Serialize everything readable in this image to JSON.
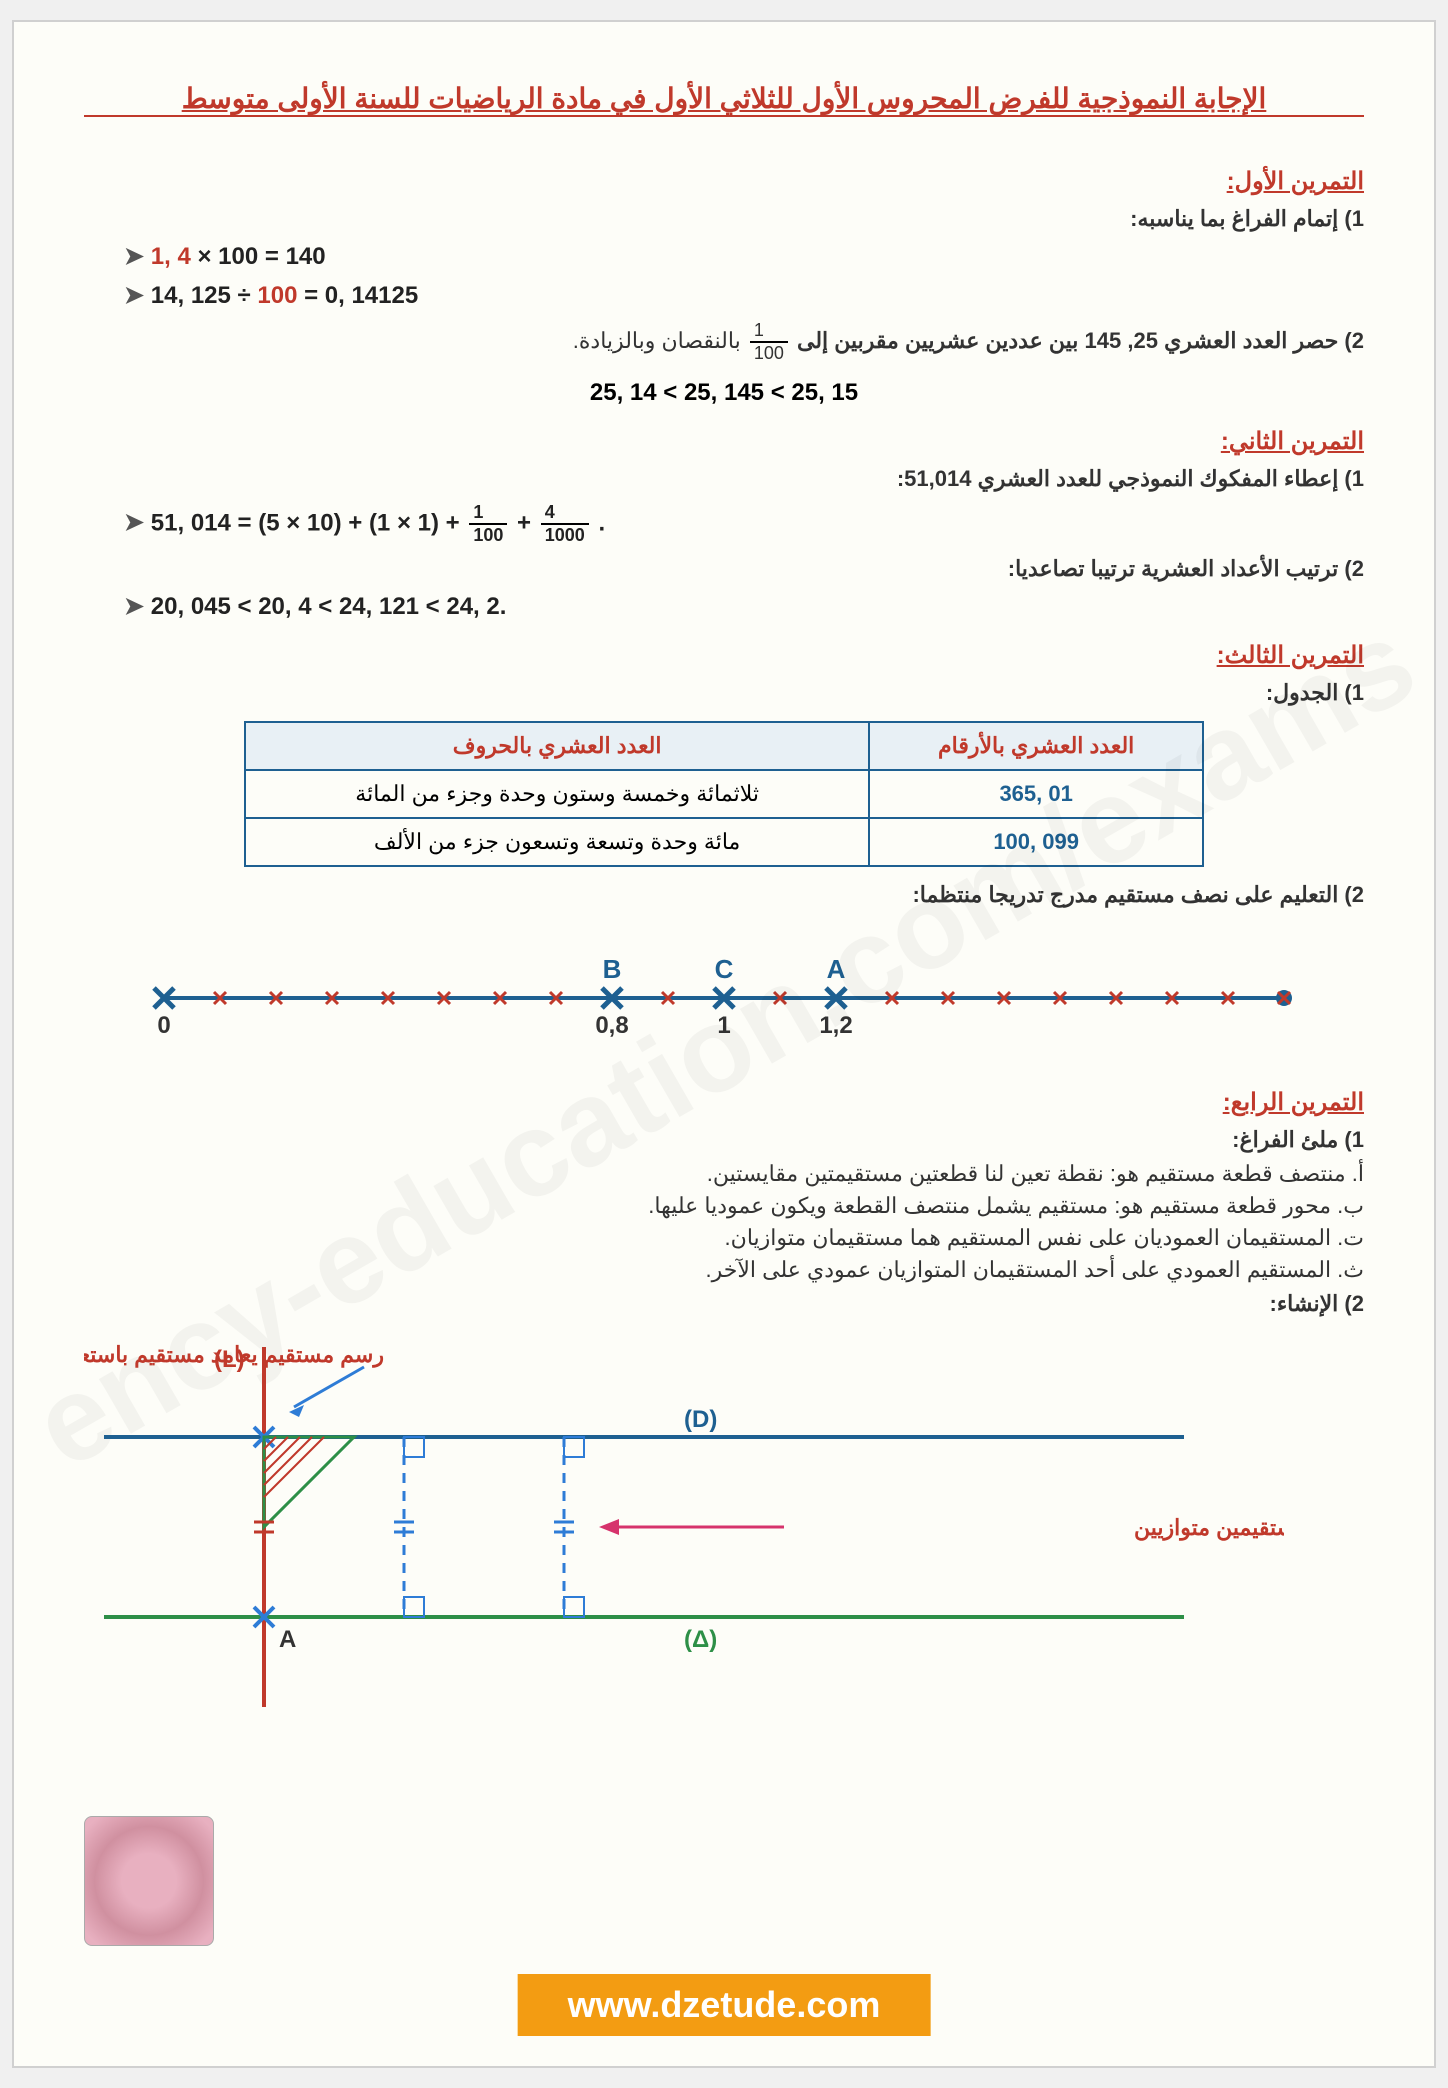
{
  "watermark": "ency-education.com/exams",
  "title": "الإجابة النموذجية للفرض المحروس الأول للثلاثي الأول في مادة الرياضيات للسنة الأولى متوسط",
  "ex1": {
    "header": "التمرين الأول:",
    "q1": "1) إتمام الفراغ بما يناسبه:",
    "eq1_a": "1, 4",
    "eq1_b": "× 100 = 140",
    "eq2_a": "14, 125 ÷",
    "eq2_b": "100",
    "eq2_c": "= 0, 14125",
    "q2_pre": "2) حصر العدد العشري 25, 145 بين عددين عشريين مقربين إلى",
    "q2_post": "بالنقصان وبالزيادة.",
    "frac_num": "1",
    "frac_den": "100",
    "ineq": "25, 14 < 25, 145 < 25, 15"
  },
  "ex2": {
    "header": "التمرين الثاني:",
    "q1": "1) إعطاء المفكوك النموذجي للعدد العشري 51,014:",
    "expansion": "51, 014 = (5 × 10) + (1 × 1) +",
    "f1n": "1",
    "f1d": "100",
    "f2n": "4",
    "f2d": "1000",
    "q2": "2) ترتيب الأعداد العشرية ترتيبا تصاعديا:",
    "order": "20, 045 < 20, 4 < 24, 121 < 24, 2."
  },
  "ex3": {
    "header": "التمرين الثالث:",
    "q1": "1) الجدول:",
    "table": {
      "col1": "العدد العشري بالأرقام",
      "col2": "العدد العشري بالحروف",
      "r1c1": "365, 01",
      "r1c2": "ثلاثمائة وخمسة وستون وحدة وجزء من المائة",
      "r2c1": "100, 099",
      "r2c2": "مائة وحدة وتسعة وتسعون جزء من الألف"
    },
    "q2": "2) التعليم على نصف مستقيم مدرج تدريجا منتظما:",
    "number_line": {
      "start": 0,
      "end": 2.0,
      "step": 0.1,
      "points": [
        {
          "label": "0",
          "value": 0,
          "show_label_below": true
        },
        {
          "label": "B",
          "value": 0.8,
          "show_label_below": true,
          "val_label": "0,8"
        },
        {
          "label": "C",
          "value": 1.0,
          "show_label_below": true,
          "val_label": "1"
        },
        {
          "label": "A",
          "value": 1.2,
          "show_label_below": true,
          "val_label": "1,2"
        }
      ],
      "line_color": "#1e6091",
      "tick_color": "#c0392b",
      "cross_color": "#1e6091"
    }
  },
  "ex4": {
    "header": "التمرين الرابع:",
    "q1": "1) ملئ الفراغ:",
    "a": "أ. منتصف قطعة مستقيم هو: نقطة تعين لنا قطعتين مستقيمتين مقايستين.",
    "b": "ب. محور قطعة مستقيم هو: مستقيم يشمل منتصف القطعة ويكون عموديا عليها.",
    "c": "ت. المستقيمان العموديان على نفس المستقيم هما مستقيمان متوازيان.",
    "d": "ث. المستقيم العمودي على أحد المستقيمان المتوازيان عمودي على الآخر.",
    "q2": "2) الإنشاء:",
    "caption1": "رسم مستقيم يعامد مستقيم باستعمال الكوس",
    "caption2": "طريقة المسافة الثابتة بين مستقيمين متوازيين",
    "labels": {
      "L": "(L)",
      "D": "(D)",
      "Delta": "(Δ)",
      "A": "A"
    },
    "colors": {
      "red_line": "#c0392b",
      "blue_line": "#1e6091",
      "green_line": "#2d8f47",
      "dash_blue": "#2e7cd6"
    }
  },
  "footer": "www.dzetude.com"
}
